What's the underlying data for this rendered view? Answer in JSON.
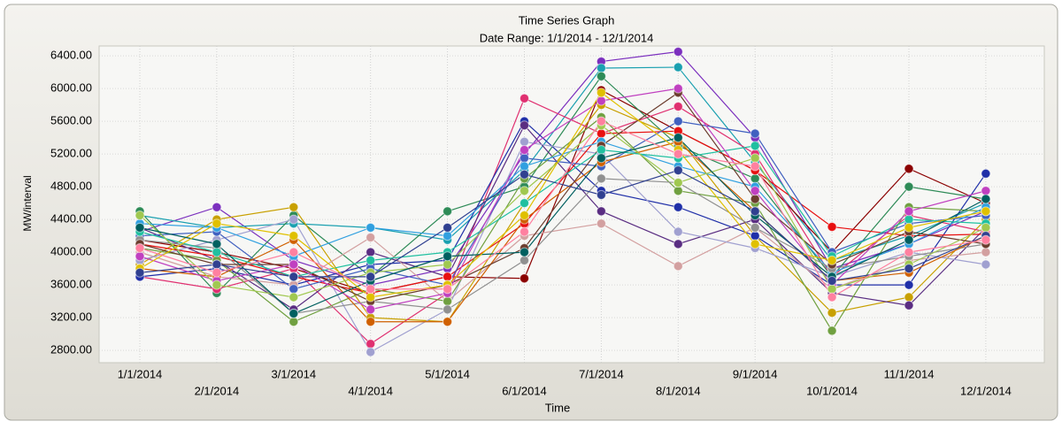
{
  "chart_data": {
    "type": "line",
    "title": "Time Series Graph",
    "subtitle": "Date Range: 1/1/2014 - 12/1/2014",
    "x_label": "Time",
    "y_label": "MW/interval",
    "categories": [
      "1/1/2014",
      "2/1/2014",
      "3/1/2014",
      "4/1/2014",
      "5/1/2014",
      "6/1/2014",
      "7/1/2014",
      "8/1/2014",
      "9/1/2014",
      "10/1/2014",
      "11/1/2014",
      "12/1/2014"
    ],
    "ylim": [
      2650,
      6520
    ],
    "yticks": [
      {
        "value": 2800,
        "label": "2800.00"
      },
      {
        "value": 3200,
        "label": "3200.00"
      },
      {
        "value": 3600,
        "label": "3600.00"
      },
      {
        "value": 4000,
        "label": "4000.00"
      },
      {
        "value": 4400,
        "label": "4400.00"
      },
      {
        "value": 4800,
        "label": "4800.00"
      },
      {
        "value": 5200,
        "label": "5200.00"
      },
      {
        "value": 5600,
        "label": "5600.00"
      },
      {
        "value": 6000,
        "label": "6000.00"
      },
      {
        "value": 6400,
        "label": "6400.00"
      }
    ],
    "grid": true,
    "markers": true,
    "series": [
      {
        "color": "#7b2fbe",
        "values": [
          4250,
          4550,
          3900,
          3600,
          3800,
          5200,
          6330,
          6450,
          5400,
          3800,
          4100,
          4500
        ]
      },
      {
        "color": "#1aa0b0",
        "values": [
          4450,
          4300,
          4350,
          4300,
          4150,
          5000,
          6250,
          6260,
          5100,
          3900,
          4200,
          4600
        ]
      },
      {
        "color": "#8b0000",
        "values": [
          4150,
          4000,
          3800,
          3500,
          3700,
          3680,
          5980,
          5480,
          5000,
          4000,
          5020,
          4600
        ]
      },
      {
        "color": "#2e8b57",
        "values": [
          4500,
          3500,
          4450,
          3700,
          4500,
          4800,
          6150,
          5300,
          4900,
          3700,
          4800,
          4650
        ]
      },
      {
        "color": "#c8a000",
        "values": [
          3850,
          4400,
          4550,
          3200,
          3150,
          4600,
          5800,
          5400,
          4200,
          3260,
          3450,
          4400
        ]
      },
      {
        "color": "#e03070",
        "values": [
          3700,
          3550,
          3800,
          2880,
          3500,
          5880,
          5450,
          5780,
          5200,
          3700,
          4450,
          4250
        ]
      },
      {
        "color": "#1f2fa8",
        "values": [
          3700,
          3800,
          3600,
          3850,
          3900,
          5600,
          4750,
          4550,
          4200,
          3600,
          3600,
          4960
        ]
      },
      {
        "color": "#5a2d82",
        "values": [
          4300,
          3900,
          3300,
          4000,
          3700,
          5550,
          4500,
          4100,
          4400,
          3500,
          3350,
          4300
        ]
      },
      {
        "color": "#d3a0a0",
        "values": [
          4000,
          3700,
          3600,
          4180,
          3400,
          4200,
          4350,
          3830,
          4300,
          3550,
          3900,
          4000
        ]
      },
      {
        "color": "#a0a0d0",
        "values": [
          3900,
          4150,
          4400,
          2780,
          3300,
          5350,
          5200,
          4250,
          4050,
          3700,
          4000,
          3850
        ]
      },
      {
        "color": "#e81010",
        "values": [
          4100,
          3950,
          3700,
          3500,
          3700,
          4350,
          5450,
          5480,
          5000,
          4310,
          4200,
          4220
        ]
      },
      {
        "color": "#4060c0",
        "values": [
          4200,
          4250,
          3550,
          3800,
          3600,
          5150,
          5050,
          5600,
          5450,
          4000,
          4350,
          4450
        ]
      },
      {
        "color": "#70a040",
        "values": [
          4050,
          3900,
          3150,
          3550,
          3400,
          4900,
          5650,
          4750,
          4600,
          3040,
          4550,
          4500
        ]
      },
      {
        "color": "#30a0e0",
        "values": [
          4350,
          4300,
          3950,
          4300,
          4200,
          5050,
          5350,
          5050,
          4800,
          3750,
          4100,
          4550
        ]
      },
      {
        "color": "#909090",
        "values": [
          4150,
          4050,
          3250,
          3400,
          3300,
          3900,
          4900,
          4850,
          4300,
          3800,
          3950,
          4100
        ]
      },
      {
        "color": "#d06000",
        "values": [
          3800,
          3700,
          4150,
          3150,
          3150,
          4400,
          5100,
          5350,
          4500,
          3650,
          3750,
          4200
        ]
      },
      {
        "color": "#6b3d2e",
        "values": [
          4100,
          3850,
          3850,
          3400,
          3600,
          4050,
          5300,
          5950,
          4650,
          3850,
          4250,
          4100
        ]
      },
      {
        "color": "#20c0a0",
        "values": [
          4250,
          4000,
          3700,
          3900,
          4000,
          4600,
          5250,
          5150,
          5300,
          3950,
          4400,
          4350
        ]
      },
      {
        "color": "#c040c0",
        "values": [
          3950,
          3650,
          3850,
          3300,
          3500,
          5250,
          5850,
          6000,
          4750,
          3600,
          4500,
          4750
        ]
      },
      {
        "color": "#a0c850",
        "values": [
          4450,
          3600,
          3450,
          3750,
          3850,
          4750,
          5550,
          4850,
          5150,
          3550,
          3850,
          4300
        ]
      },
      {
        "color": "#006060",
        "values": [
          4300,
          4100,
          3250,
          3650,
          3950,
          4000,
          5150,
          5400,
          4450,
          3700,
          4150,
          4650
        ]
      },
      {
        "color": "#e0c000",
        "values": [
          3800,
          4350,
          4200,
          3450,
          3600,
          4450,
          5950,
          5250,
          4100,
          3900,
          4300,
          4500
        ]
      },
      {
        "color": "#304090",
        "values": [
          3750,
          3850,
          3700,
          3700,
          4300,
          4950,
          4700,
          5000,
          4500,
          3650,
          3800,
          4200
        ]
      },
      {
        "color": "#ff80a0",
        "values": [
          4050,
          3750,
          4000,
          3550,
          3550,
          4250,
          5600,
          5200,
          5050,
          3450,
          4000,
          4150
        ]
      }
    ]
  }
}
